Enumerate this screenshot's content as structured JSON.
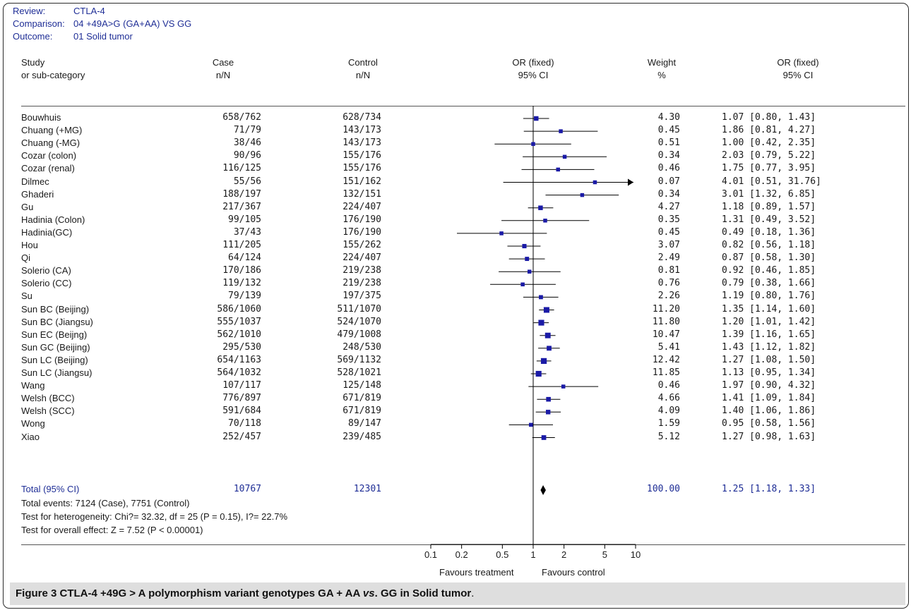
{
  "header": {
    "review_label": "Review:",
    "review_value": "CTLA-4",
    "comparison_label": "Comparison:",
    "comparison_value": "04 +49A>G (GA+AA) VS GG",
    "outcome_label": "Outcome:",
    "outcome_value": "01 Solid tumor"
  },
  "columns": {
    "study_1": "Study",
    "study_2": "or sub-category",
    "case_1": "Case",
    "case_2": "n/N",
    "control_1": "Control",
    "control_2": "n/N",
    "or_plot_1": "OR (fixed)",
    "or_plot_2": "95% CI",
    "weight_1": "Weight",
    "weight_2": "%",
    "or_1": "OR (fixed)",
    "or_2": "95% CI"
  },
  "rows": [
    {
      "study": "Bouwhuis",
      "case": "658/762",
      "control": "628/734",
      "weight": "4.30",
      "ci_text": "1.07 [0.80, 1.43]"
    },
    {
      "study": "Chuang (+MG)",
      "case": "71/79",
      "control": "143/173",
      "weight": "0.45",
      "ci_text": "1.86 [0.81, 4.27]"
    },
    {
      "study": "Chuang (-MG)",
      "case": "38/46",
      "control": "143/173",
      "weight": "0.51",
      "ci_text": "1.00 [0.42, 2.35]"
    },
    {
      "study": "Cozar (colon)",
      "case": "90/96",
      "control": "155/176",
      "weight": "0.34",
      "ci_text": "2.03 [0.79, 5.22]"
    },
    {
      "study": "Cozar (renal)",
      "case": "116/125",
      "control": "155/176",
      "weight": "0.46",
      "ci_text": "1.75 [0.77, 3.95]"
    },
    {
      "study": "Dilmec",
      "case": "55/56",
      "control": "151/162",
      "weight": "0.07",
      "ci_text": "4.01 [0.51, 31.76]"
    },
    {
      "study": "Ghaderi",
      "case": "188/197",
      "control": "132/151",
      "weight": "0.34",
      "ci_text": "3.01 [1.32, 6.85]"
    },
    {
      "study": "Gu",
      "case": "217/367",
      "control": "224/407",
      "weight": "4.27",
      "ci_text": "1.18 [0.89, 1.57]"
    },
    {
      "study": "Hadinia (Colon)",
      "case": "99/105",
      "control": "176/190",
      "weight": "0.35",
      "ci_text": "1.31 [0.49, 3.52]"
    },
    {
      "study": "Hadinia(GC)",
      "case": "37/43",
      "control": "176/190",
      "weight": "0.45",
      "ci_text": "0.49 [0.18, 1.36]"
    },
    {
      "study": "Hou",
      "case": "111/205",
      "control": "155/262",
      "weight": "3.07",
      "ci_text": "0.82 [0.56, 1.18]"
    },
    {
      "study": "Qi",
      "case": "64/124",
      "control": "224/407",
      "weight": "2.49",
      "ci_text": "0.87 [0.58, 1.30]"
    },
    {
      "study": "Solerio (CA)",
      "case": "170/186",
      "control": "219/238",
      "weight": "0.81",
      "ci_text": "0.92 [0.46, 1.85]"
    },
    {
      "study": "Solerio (CC)",
      "case": "119/132",
      "control": "219/238",
      "weight": "0.76",
      "ci_text": "0.79 [0.38, 1.66]"
    },
    {
      "study": "Su",
      "case": "79/139",
      "control": "197/375",
      "weight": "2.26",
      "ci_text": "1.19 [0.80, 1.76]"
    },
    {
      "study": "Sun BC (Beijing)",
      "case": "586/1060",
      "control": "511/1070",
      "weight": "11.20",
      "ci_text": "1.35 [1.14, 1.60]"
    },
    {
      "study": "Sun BC (Jiangsu)",
      "case": "555/1037",
      "control": "524/1070",
      "weight": "11.80",
      "ci_text": "1.20 [1.01, 1.42]"
    },
    {
      "study": "Sun EC (Beijng)",
      "case": "562/1010",
      "control": "479/1008",
      "weight": "10.47",
      "ci_text": "1.39 [1.16, 1.65]"
    },
    {
      "study": "Sun GC (Beijing)",
      "case": "295/530",
      "control": "248/530",
      "weight": "5.41",
      "ci_text": "1.43 [1.12, 1.82]"
    },
    {
      "study": "Sun LC (Beijing)",
      "case": "654/1163",
      "control": "569/1132",
      "weight": "12.42",
      "ci_text": "1.27 [1.08, 1.50]"
    },
    {
      "study": "Sun LC (Jiangsu)",
      "case": "564/1032",
      "control": "528/1021",
      "weight": "11.85",
      "ci_text": "1.13 [0.95, 1.34]"
    },
    {
      "study": "Wang",
      "case": "107/117",
      "control": "125/148",
      "weight": "0.46",
      "ci_text": "1.97 [0.90, 4.32]"
    },
    {
      "study": "Welsh (BCC)",
      "case": "776/897",
      "control": "671/819",
      "weight": "4.66",
      "ci_text": "1.41 [1.09, 1.84]"
    },
    {
      "study": "Welsh (SCC)",
      "case": "591/684",
      "control": "671/819",
      "weight": "4.09",
      "ci_text": "1.40 [1.06, 1.86]"
    },
    {
      "study": "Wong",
      "case": "70/118",
      "control": "89/147",
      "weight": "1.59",
      "ci_text": "0.95 [0.58, 1.56]"
    },
    {
      "study": "Xiao",
      "case": "252/457",
      "control": "239/485",
      "weight": "5.12",
      "ci_text": "1.27 [0.98, 1.63]"
    }
  ],
  "total": {
    "label": "Total (95% CI)",
    "case": "10767",
    "control": "12301",
    "weight": "100.00",
    "ci_text": "1.25 [1.18, 1.33]"
  },
  "footer": {
    "events": "Total events: 7124 (Case), 7751 (Control)",
    "heterogeneity": "Test for heterogeneity: Chi?= 32.32, df = 25 (P = 0.15), I?= 22.7%",
    "overall": "Test for overall effect: Z = 7.52 (P < 0.00001)"
  },
  "axis": {
    "left_label": "Favours treatment",
    "right_label": "Favours control"
  },
  "caption": {
    "bold": "Figure 3 CTLA-4 +49G > A polymorphism variant genotypes GA + AA ",
    "italic": "vs",
    "bold2": ". GG in Solid tumor",
    "tail": "."
  },
  "colors": {
    "marker": "#1a1aa6",
    "line": "#000000",
    "blue_text": "#1f2e96"
  },
  "chart_data": {
    "type": "forest",
    "scale": "log",
    "xlim": [
      0.1,
      10
    ],
    "ticks": [
      0.1,
      0.2,
      0.5,
      1,
      2,
      5,
      10
    ],
    "tick_labels": [
      "0.1",
      "0.2",
      "0.5",
      "1",
      "2",
      "5",
      "10"
    ],
    "reference": 1,
    "studies": [
      {
        "or": 1.07,
        "lo": 0.8,
        "hi": 1.43,
        "weight": 4.3
      },
      {
        "or": 1.86,
        "lo": 0.81,
        "hi": 4.27,
        "weight": 0.45
      },
      {
        "or": 1.0,
        "lo": 0.42,
        "hi": 2.35,
        "weight": 0.51
      },
      {
        "or": 2.03,
        "lo": 0.79,
        "hi": 5.22,
        "weight": 0.34
      },
      {
        "or": 1.75,
        "lo": 0.77,
        "hi": 3.95,
        "weight": 0.46
      },
      {
        "or": 4.01,
        "lo": 0.51,
        "hi": 31.76,
        "weight": 0.07
      },
      {
        "or": 3.01,
        "lo": 1.32,
        "hi": 6.85,
        "weight": 0.34
      },
      {
        "or": 1.18,
        "lo": 0.89,
        "hi": 1.57,
        "weight": 4.27
      },
      {
        "or": 1.31,
        "lo": 0.49,
        "hi": 3.52,
        "weight": 0.35
      },
      {
        "or": 0.49,
        "lo": 0.18,
        "hi": 1.36,
        "weight": 0.45
      },
      {
        "or": 0.82,
        "lo": 0.56,
        "hi": 1.18,
        "weight": 3.07
      },
      {
        "or": 0.87,
        "lo": 0.58,
        "hi": 1.3,
        "weight": 2.49
      },
      {
        "or": 0.92,
        "lo": 0.46,
        "hi": 1.85,
        "weight": 0.81
      },
      {
        "or": 0.79,
        "lo": 0.38,
        "hi": 1.66,
        "weight": 0.76
      },
      {
        "or": 1.19,
        "lo": 0.8,
        "hi": 1.76,
        "weight": 2.26
      },
      {
        "or": 1.35,
        "lo": 1.14,
        "hi": 1.6,
        "weight": 11.2
      },
      {
        "or": 1.2,
        "lo": 1.01,
        "hi": 1.42,
        "weight": 11.8
      },
      {
        "or": 1.39,
        "lo": 1.16,
        "hi": 1.65,
        "weight": 10.47
      },
      {
        "or": 1.43,
        "lo": 1.12,
        "hi": 1.82,
        "weight": 5.41
      },
      {
        "or": 1.27,
        "lo": 1.08,
        "hi": 1.5,
        "weight": 12.42
      },
      {
        "or": 1.13,
        "lo": 0.95,
        "hi": 1.34,
        "weight": 11.85
      },
      {
        "or": 1.97,
        "lo": 0.9,
        "hi": 4.32,
        "weight": 0.46
      },
      {
        "or": 1.41,
        "lo": 1.09,
        "hi": 1.84,
        "weight": 4.66
      },
      {
        "or": 1.4,
        "lo": 1.06,
        "hi": 1.86,
        "weight": 4.09
      },
      {
        "or": 0.95,
        "lo": 0.58,
        "hi": 1.56,
        "weight": 1.59
      },
      {
        "or": 1.27,
        "lo": 0.98,
        "hi": 1.63,
        "weight": 5.12
      }
    ],
    "pooled": {
      "or": 1.25,
      "lo": 1.18,
      "hi": 1.33,
      "weight": 100.0
    }
  }
}
